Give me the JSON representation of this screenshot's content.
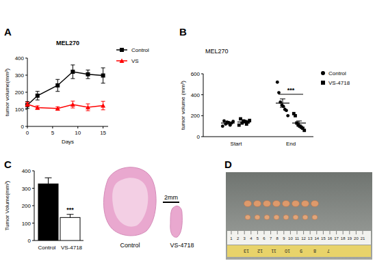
{
  "chart_data": [
    {
      "type": "line",
      "title": "MEL270",
      "x_label": "Days",
      "y_label": "tumor volume(mm³)",
      "x": [
        0,
        2,
        6,
        9,
        12,
        15
      ],
      "series": [
        {
          "name": "Control",
          "color": "#000000",
          "marker": "square",
          "values": [
            125,
            180,
            240,
            320,
            305,
            298
          ],
          "errors": [
            20,
            25,
            35,
            40,
            25,
            45
          ]
        },
        {
          "name": "VS",
          "color": "#ff0000",
          "marker": "triangle",
          "values": [
            130,
            110,
            105,
            128,
            112,
            122
          ],
          "errors": [
            12,
            10,
            10,
            20,
            20,
            25
          ]
        }
      ],
      "xlim": [
        0,
        16
      ],
      "xticks": [
        0,
        5,
        10,
        15
      ],
      "ylim": [
        0,
        400
      ],
      "yticks": [
        0,
        100,
        200,
        300,
        400
      ],
      "legend": "right"
    },
    {
      "type": "scatter",
      "title": "MEL270",
      "y_label": "tumor volume (mm³)",
      "categories": [
        "Start",
        "End"
      ],
      "series": [
        {
          "name": "Control",
          "color": "#000000",
          "marker": "circle",
          "values": [
            [
              100,
              150,
              120,
              140,
              135,
              110,
              130,
              145
            ],
            [
              520,
              420,
              330,
              300,
              290,
              260,
              250,
              200
            ]
          ],
          "mean": [
            130,
            320
          ],
          "errors": [
            12,
            40
          ]
        },
        {
          "name": "VS-4718",
          "color": "#000000",
          "marker": "square",
          "values": [
            [
              110,
              170,
              130,
              150,
              145,
              120,
              140,
              155
            ],
            [
              220,
              200,
              130,
              110,
              100,
              90,
              80,
              60
            ]
          ],
          "mean": [
            140,
            130
          ],
          "errors": [
            10,
            20
          ]
        }
      ],
      "annotation": "***",
      "ylim": [
        0,
        600
      ],
      "yticks": [
        0,
        200,
        400,
        600
      ],
      "legend": "right"
    },
    {
      "type": "bar",
      "y_label": "Tumor Volume(mm³)",
      "categories": [
        "Control",
        "VS-4718"
      ],
      "values": [
        325,
        132
      ],
      "errors": [
        35,
        18
      ],
      "colors": [
        "#000000",
        "#ffffff"
      ],
      "annotation": "***",
      "ylim": [
        0,
        400
      ],
      "yticks": [
        0,
        100,
        200,
        300,
        400
      ]
    }
  ],
  "figure": {
    "panel_labels": [
      "A",
      "B",
      "C",
      "D"
    ],
    "histology": {
      "labels": [
        "Control",
        "VS-4718"
      ],
      "scale_bar": "2mm"
    },
    "ruler": {
      "top": [
        1,
        2,
        3,
        4,
        5,
        6,
        7,
        8,
        9,
        10,
        11,
        12,
        13,
        14,
        15,
        16,
        17,
        18,
        19,
        20,
        21
      ],
      "bottom": [
        13,
        12,
        11,
        10,
        9,
        8,
        7
      ]
    }
  }
}
